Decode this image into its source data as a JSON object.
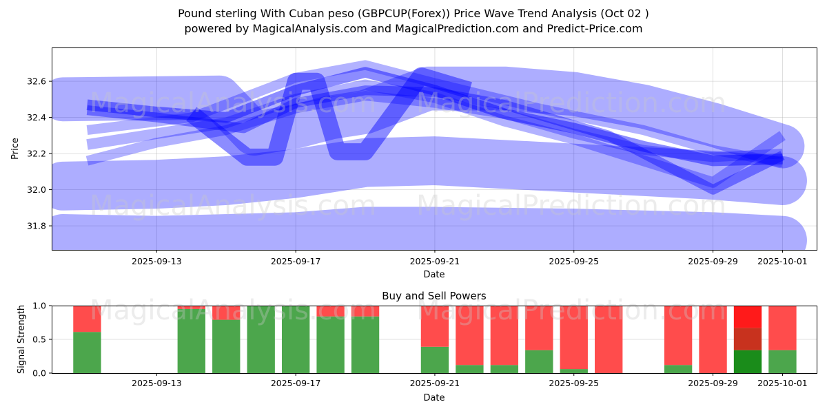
{
  "header": {
    "title": "Pound sterling With Cuban peso (GBPCUP(Forex)) Price Wave Trend Analysis (Oct 02 )",
    "subtitle": "powered by MagicalAnalysis.com and MagicalPrediction.com and Predict-Price.com"
  },
  "watermarks": [
    "MagicalAnalysis.com",
    "MagicalPrediction.com"
  ],
  "chart_data": [
    {
      "type": "line",
      "title": "Price Wave Trend Analysis",
      "xlabel": "Date",
      "ylabel": "Price",
      "x_ticks": [
        "2025-09-13",
        "2025-09-17",
        "2025-09-21",
        "2025-09-25",
        "2025-09-29",
        "2025-10-01"
      ],
      "y_ticks": [
        "31.8",
        "32.0",
        "32.2",
        "32.4",
        "32.6"
      ],
      "xlim": [
        "2025-09-10",
        "2025-10-02"
      ],
      "ylim": [
        31.667,
        32.787
      ],
      "grid": true,
      "band_color": "#0000ff",
      "series": [
        {
          "name": "wave-low",
          "x": [
            "2025-09-10.3",
            "2025-09-13",
            "2025-09-17",
            "2025-09-19",
            "2025-09-21",
            "2025-09-25",
            "2025-09-29",
            "2025-10-01"
          ],
          "values": [
            31.73,
            31.72,
            31.74,
            31.77,
            31.77,
            31.76,
            31.74,
            31.72
          ],
          "weight": 1.0,
          "opacity": 0.32
        },
        {
          "name": "wave-mid",
          "x": [
            "2025-09-10.3",
            "2025-09-13",
            "2025-09-15",
            "2025-09-17",
            "2025-09-19",
            "2025-09-21",
            "2025-09-25",
            "2025-09-29",
            "2025-10-01"
          ],
          "values": [
            32.02,
            32.03,
            32.05,
            32.09,
            32.15,
            32.16,
            32.12,
            32.08,
            32.05
          ],
          "weight": 1.0,
          "opacity": 0.32
        },
        {
          "name": "wave-top",
          "x": [
            "2025-09-10.3",
            "2025-09-14.8",
            "2025-09-15.8",
            "2025-09-17",
            "2025-09-18",
            "2025-09-19",
            "2025-09-20.8",
            "2025-09-23",
            "2025-09-25",
            "2025-09-27",
            "2025-09-29",
            "2025-10-01"
          ],
          "values": [
            32.5,
            32.51,
            32.31,
            32.35,
            32.4,
            32.43,
            32.56,
            32.56,
            32.53,
            32.46,
            32.36,
            32.24
          ],
          "weight": 0.9,
          "opacity": 0.32
        },
        {
          "name": "wave-swing",
          "x": [
            "2025-09-14",
            "2025-09-15.6",
            "2025-09-16.4",
            "2025-09-17",
            "2025-09-17.6",
            "2025-09-18.2",
            "2025-09-19",
            "2025-09-20.6",
            "2025-09-22"
          ],
          "values": [
            32.42,
            32.18,
            32.18,
            32.6,
            32.6,
            32.21,
            32.21,
            32.63,
            32.55
          ],
          "weight": 0.35,
          "opacity": 0.45
        },
        {
          "name": "wave-fast-1",
          "x": [
            "2025-09-11",
            "2025-09-13",
            "2025-09-15",
            "2025-09-17",
            "2025-09-19",
            "2025-09-21",
            "2025-09-23",
            "2025-09-25",
            "2025-09-27",
            "2025-09-29",
            "2025-10-01"
          ],
          "values": [
            32.47,
            32.43,
            32.4,
            32.55,
            32.65,
            32.55,
            32.42,
            32.34,
            32.24,
            32.16,
            32.17
          ],
          "weight": 0.22,
          "opacity": 0.45
        },
        {
          "name": "wave-fast-2",
          "x": [
            "2025-09-11",
            "2025-09-13",
            "2025-09-15",
            "2025-09-17",
            "2025-09-19",
            "2025-09-21",
            "2025-09-23",
            "2025-09-25",
            "2025-09-27",
            "2025-09-29",
            "2025-10-01"
          ],
          "values": [
            32.25,
            32.31,
            32.37,
            32.5,
            32.58,
            32.51,
            32.38,
            32.28,
            32.16,
            32.04,
            32.3
          ],
          "weight": 0.22,
          "opacity": 0.3
        },
        {
          "name": "wave-fast-3",
          "x": [
            "2025-09-11",
            "2025-09-13",
            "2025-09-15",
            "2025-09-17",
            "2025-09-19",
            "2025-09-21",
            "2025-09-23",
            "2025-09-25",
            "2025-09-27",
            "2025-09-29",
            "2025-10-01"
          ],
          "values": [
            32.16,
            32.26,
            32.33,
            32.45,
            32.52,
            32.48,
            32.42,
            32.31,
            32.22,
            32.18,
            32.2
          ],
          "weight": 0.2,
          "opacity": 0.3
        },
        {
          "name": "wave-fast-4",
          "x": [
            "2025-09-11",
            "2025-09-14",
            "2025-09-17",
            "2025-09-19",
            "2025-09-21",
            "2025-09-24",
            "2025-09-27",
            "2025-09-29",
            "2025-10-01"
          ],
          "values": [
            32.33,
            32.4,
            32.62,
            32.69,
            32.59,
            32.45,
            32.33,
            32.22,
            32.15
          ],
          "weight": 0.2,
          "opacity": 0.3
        },
        {
          "name": "wave-fast-5",
          "x": [
            "2025-09-11",
            "2025-09-13",
            "2025-09-15.5",
            "2025-09-17",
            "2025-09-19",
            "2025-09-21",
            "2025-09-23",
            "2025-09-26",
            "2025-09-29",
            "2025-10-01"
          ],
          "values": [
            32.44,
            32.4,
            32.34,
            32.48,
            32.55,
            32.54,
            32.47,
            32.3,
            32.0,
            32.19
          ],
          "weight": 0.2,
          "opacity": 0.4
        }
      ]
    },
    {
      "type": "bar",
      "title": "Buy and Sell Powers",
      "xlabel": "Date",
      "ylabel": "Signal Strength",
      "x_ticks": [
        "2025-09-13",
        "2025-09-17",
        "2025-09-21",
        "2025-09-25",
        "2025-09-29",
        "2025-10-01"
      ],
      "y_ticks": [
        "0.0",
        "0.5",
        "1.0"
      ],
      "ylim": [
        0,
        1
      ],
      "grid": true,
      "colors": {
        "buy": "#4ca64c",
        "sell": "#ff4c4c",
        "buy_strong": "#1a8c1a",
        "sell_mid": "#c8321e",
        "sell_strong": "#ff1a1a"
      },
      "categories": [
        "2025-09-11",
        "2025-09-14",
        "2025-09-15",
        "2025-09-16",
        "2025-09-17",
        "2025-09-18",
        "2025-09-19",
        "2025-09-21",
        "2025-09-22",
        "2025-09-23",
        "2025-09-24",
        "2025-09-25",
        "2025-09-26",
        "2025-09-28",
        "2025-09-29",
        "2025-09-30",
        "2025-10-01"
      ],
      "series": [
        {
          "name": "Buy",
          "values": [
            0.61,
            0.95,
            0.79,
            1.0,
            1.0,
            0.84,
            0.84,
            0.39,
            0.12,
            0.12,
            0.34,
            0.06,
            0.0,
            0.12,
            0.0,
            0.34,
            0.34
          ]
        },
        {
          "name": "Sell",
          "values": [
            0.39,
            0.05,
            0.21,
            0.0,
            0.0,
            0.16,
            0.16,
            0.61,
            0.88,
            0.88,
            0.66,
            0.94,
            1.0,
            0.88,
            1.0,
            0.66,
            0.66
          ]
        }
      ],
      "highlight": {
        "date": "2025-09-30",
        "buy": 0.34,
        "sell_mid": 0.33,
        "sell_strong": 0.33
      }
    }
  ]
}
